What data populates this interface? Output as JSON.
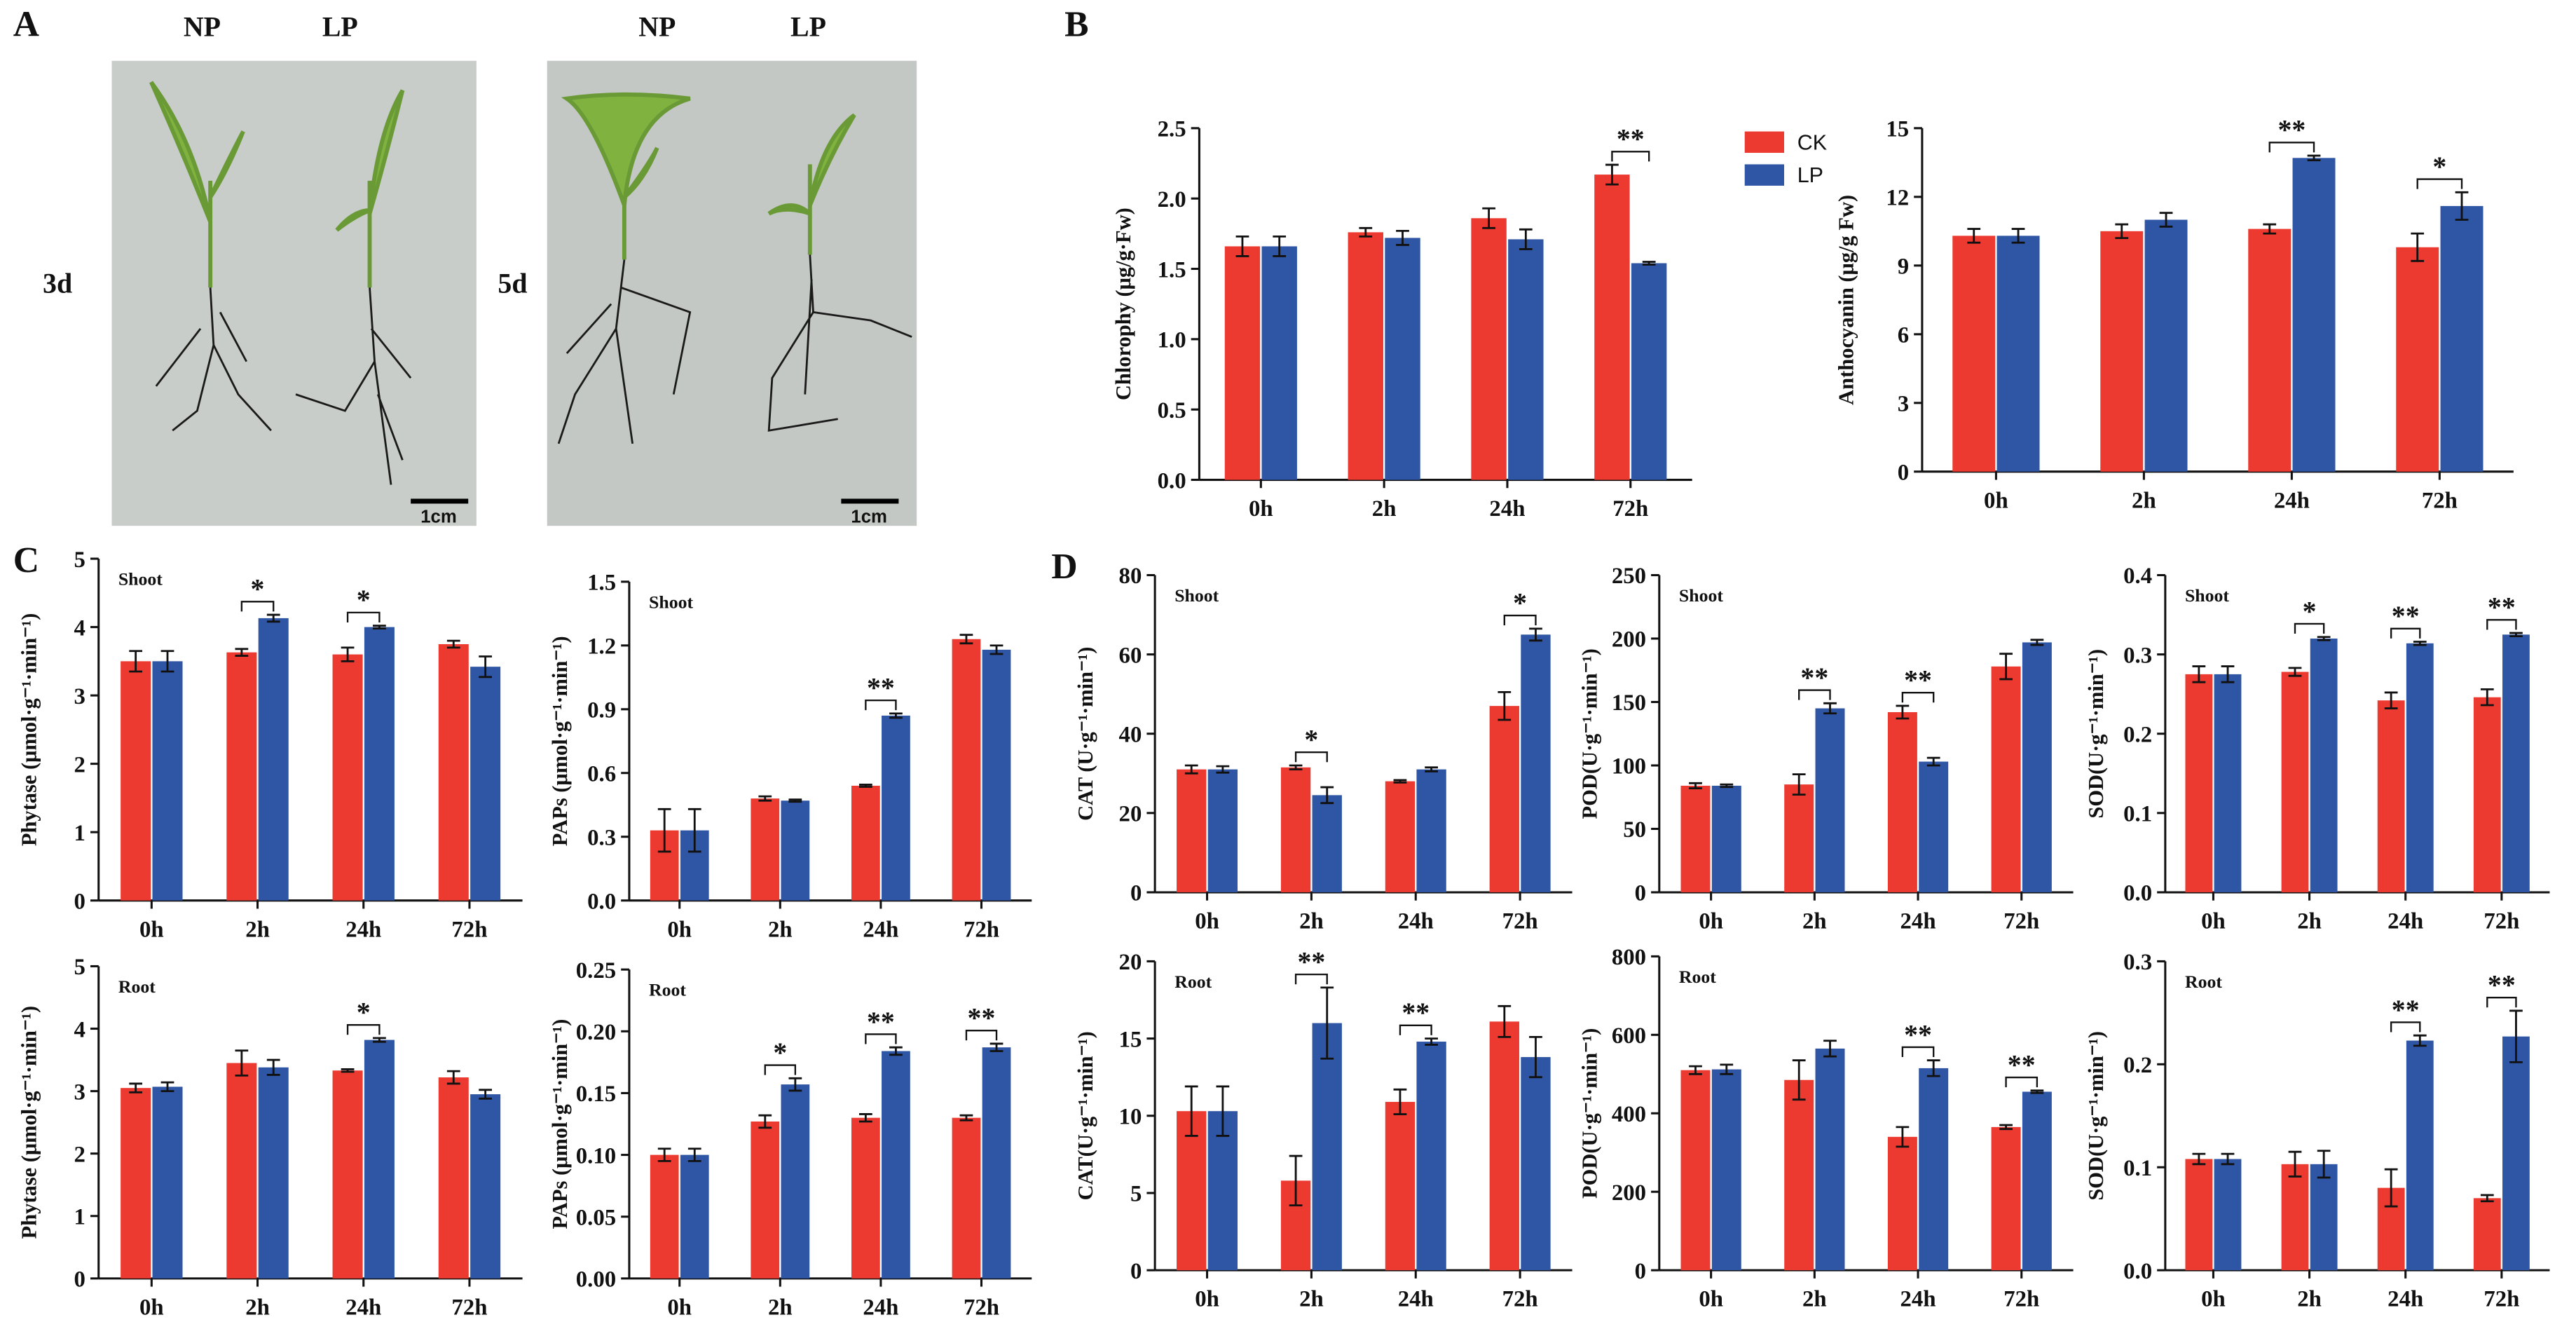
{
  "panel_labels": [
    "A",
    "B",
    "C",
    "D"
  ],
  "photo": {
    "column_labels": [
      "NP",
      "LP",
      "NP",
      "LP"
    ],
    "row_labels": [
      "3d",
      "5d"
    ],
    "scale_bars": [
      "1cm",
      "1cm"
    ]
  },
  "chart_data": [
    {
      "type": "bar",
      "ylabel": "Chlorophy (μg/g·Fw)",
      "legend": "right",
      "categories": [
        "0h",
        "2h",
        "24h",
        "72h"
      ],
      "series": [
        {
          "name": "CK",
          "color": "#ec3a30",
          "values": [
            1.66,
            1.76,
            1.86,
            2.17
          ],
          "errors": [
            0.07,
            0.03,
            0.07,
            0.07
          ]
        },
        {
          "name": "LP",
          "color": "#2f55a5",
          "values": [
            1.66,
            1.72,
            1.71,
            1.54
          ],
          "errors": [
            0.07,
            0.05,
            0.07,
            0.01
          ]
        }
      ],
      "significance": [
        null,
        null,
        null,
        "**"
      ],
      "ylim": [
        0,
        2.5
      ],
      "yticks": [
        {
          "value": 0,
          "label": "0.0"
        },
        0.5,
        {
          "value": 1,
          "label": "1.0"
        },
        1.5,
        {
          "value": 2,
          "label": "2.0"
        },
        2.5
      ]
    },
    {
      "type": "bar",
      "ylabel": "Anthocyanin  (μg/g Fw)",
      "categories": [
        "0h",
        "2h",
        "24h",
        "72h"
      ],
      "series": [
        {
          "name": "CK",
          "color": "#ec3a30",
          "values": [
            10.3,
            10.5,
            10.6,
            9.8
          ],
          "errors": [
            0.3,
            0.3,
            0.2,
            0.6
          ]
        },
        {
          "name": "LP",
          "color": "#2f55a5",
          "values": [
            10.3,
            11.0,
            13.7,
            11.6
          ],
          "errors": [
            0.3,
            0.3,
            0.1,
            0.6
          ]
        }
      ],
      "significance": [
        null,
        null,
        "**",
        "*"
      ],
      "ylim": [
        0,
        15
      ],
      "yticks": [
        0,
        3,
        6,
        9,
        12,
        15
      ]
    },
    {
      "type": "bar",
      "ylabel": "Phytase (μmol·g⁻¹·min⁻¹)",
      "inset_label": "Shoot",
      "categories": [
        "0h",
        "2h",
        "24h",
        "72h"
      ],
      "series": [
        {
          "name": "CK",
          "color": "#ec3a30",
          "values": [
            3.5,
            3.63,
            3.6,
            3.75
          ],
          "errors": [
            0.15,
            0.05,
            0.1,
            0.05
          ]
        },
        {
          "name": "LP",
          "color": "#2f55a5",
          "values": [
            3.5,
            4.13,
            4.0,
            3.42
          ],
          "errors": [
            0.15,
            0.05,
            0.02,
            0.15
          ]
        }
      ],
      "significance": [
        null,
        "*",
        "*",
        null
      ],
      "ylim": [
        0,
        5
      ],
      "yticks": [
        0,
        1,
        2,
        3,
        4,
        5
      ]
    },
    {
      "type": "bar",
      "ylabel": "PAPs (μmol·g⁻¹·min⁻¹)",
      "inset_label": "Shoot",
      "categories": [
        "0h",
        "2h",
        "24h",
        "72h"
      ],
      "series": [
        {
          "name": "CK",
          "color": "#ec3a30",
          "values": [
            0.33,
            0.48,
            0.54,
            1.23
          ],
          "errors": [
            0.1,
            0.01,
            0.005,
            0.02
          ]
        },
        {
          "name": "LP",
          "color": "#2f55a5",
          "values": [
            0.33,
            0.47,
            0.87,
            1.18
          ],
          "errors": [
            0.1,
            0.005,
            0.01,
            0.02
          ]
        }
      ],
      "significance": [
        null,
        null,
        "**",
        null
      ],
      "ylim": [
        0,
        1.5
      ],
      "yticks": [
        {
          "value": 0,
          "label": "0.0"
        },
        0.3,
        0.6,
        0.9,
        1.2,
        1.5
      ]
    },
    {
      "type": "bar",
      "ylabel": "Phytase (μmol·g⁻¹·min⁻¹)",
      "inset_label": "Root",
      "categories": [
        "0h",
        "2h",
        "24h",
        "72h"
      ],
      "series": [
        {
          "name": "CK",
          "color": "#ec3a30",
          "values": [
            3.05,
            3.45,
            3.33,
            3.22
          ],
          "errors": [
            0.07,
            0.2,
            0.02,
            0.1
          ]
        },
        {
          "name": "LP",
          "color": "#2f55a5",
          "values": [
            3.07,
            3.38,
            3.82,
            2.95
          ],
          "errors": [
            0.07,
            0.12,
            0.03,
            0.07
          ]
        }
      ],
      "significance": [
        null,
        null,
        "*",
        null
      ],
      "ylim": [
        0,
        5
      ],
      "yticks": [
        0,
        1,
        2,
        3,
        4,
        5
      ]
    },
    {
      "type": "bar",
      "ylabel": "PAPs (μmol·g⁻¹·min⁻¹)",
      "inset_label": "Root",
      "categories": [
        "0h",
        "2h",
        "24h",
        "72h"
      ],
      "series": [
        {
          "name": "CK",
          "color": "#ec3a30",
          "values": [
            0.1,
            0.127,
            0.13,
            0.13
          ],
          "errors": [
            0.005,
            0.005,
            0.003,
            0.002
          ]
        },
        {
          "name": "LP",
          "color": "#2f55a5",
          "values": [
            0.1,
            0.157,
            0.184,
            0.187
          ],
          "errors": [
            0.005,
            0.005,
            0.003,
            0.003
          ]
        }
      ],
      "significance": [
        null,
        "*",
        "**",
        "**"
      ],
      "ylim": [
        0,
        0.25
      ],
      "yticks": [
        {
          "value": 0,
          "label": "0.00"
        },
        {
          "value": 0.05,
          "label": "0.05"
        },
        {
          "value": 0.1,
          "label": "0.10"
        },
        {
          "value": 0.15,
          "label": "0.15"
        },
        {
          "value": 0.2,
          "label": "0.20"
        },
        {
          "value": 0.25,
          "label": "0.25"
        }
      ]
    },
    {
      "type": "bar",
      "ylabel": "CAT (U·g⁻¹·min⁻¹)",
      "inset_label": "Shoot",
      "categories": [
        "0h",
        "2h",
        "24h",
        "72h"
      ],
      "series": [
        {
          "name": "CK",
          "color": "#ec3a30",
          "values": [
            31,
            31.5,
            28,
            47
          ],
          "errors": [
            1,
            0.5,
            0.3,
            3.5
          ]
        },
        {
          "name": "LP",
          "color": "#2f55a5",
          "values": [
            31,
            24.5,
            31,
            65
          ],
          "errors": [
            0.8,
            2,
            0.5,
            1.5
          ]
        }
      ],
      "significance": [
        null,
        "*",
        null,
        "*"
      ],
      "ylim": [
        0,
        80
      ],
      "yticks": [
        0,
        20,
        40,
        60,
        80
      ]
    },
    {
      "type": "bar",
      "ylabel": "POD(U·g⁻¹·min⁻¹)",
      "inset_label": "Shoot",
      "categories": [
        "0h",
        "2h",
        "24h",
        "72h"
      ],
      "series": [
        {
          "name": "CK",
          "color": "#ec3a30",
          "values": [
            84,
            85,
            142,
            178
          ],
          "errors": [
            2,
            8,
            5,
            10
          ]
        },
        {
          "name": "LP",
          "color": "#2f55a5",
          "values": [
            84,
            145,
            103,
            197
          ],
          "errors": [
            1,
            4,
            3,
            2
          ]
        }
      ],
      "significance": [
        null,
        "**",
        "**",
        null
      ],
      "ylim": [
        0,
        250
      ],
      "yticks": [
        0,
        50,
        100,
        150,
        200,
        250
      ]
    },
    {
      "type": "bar",
      "ylabel": "SOD(U·g⁻¹·min⁻¹)",
      "inset_label": "Shoot",
      "categories": [
        "0h",
        "2h",
        "24h",
        "72h"
      ],
      "series": [
        {
          "name": "CK",
          "color": "#ec3a30",
          "values": [
            0.275,
            0.278,
            0.242,
            0.246
          ],
          "errors": [
            0.01,
            0.005,
            0.01,
            0.01
          ]
        },
        {
          "name": "LP",
          "color": "#2f55a5",
          "values": [
            0.275,
            0.32,
            0.314,
            0.325
          ],
          "errors": [
            0.01,
            0.002,
            0.002,
            0.002
          ]
        }
      ],
      "significance": [
        null,
        "*",
        "**",
        "**"
      ],
      "ylim": [
        0,
        0.4
      ],
      "yticks": [
        {
          "value": 0,
          "label": "0.0"
        },
        0.1,
        0.2,
        0.3,
        0.4
      ]
    },
    {
      "type": "bar",
      "ylabel": "CAT(U·g⁻¹·min⁻¹)",
      "inset_label": "Root",
      "categories": [
        "0h",
        "2h",
        "24h",
        "72h"
      ],
      "series": [
        {
          "name": "CK",
          "color": "#ec3a30",
          "values": [
            10.3,
            5.8,
            10.9,
            16.1
          ],
          "errors": [
            1.6,
            1.6,
            0.8,
            1
          ]
        },
        {
          "name": "LP",
          "color": "#2f55a5",
          "values": [
            10.3,
            16,
            14.8,
            13.8
          ],
          "errors": [
            1.6,
            2.3,
            0.2,
            1.3
          ]
        }
      ],
      "significance": [
        null,
        "**",
        "**",
        null
      ],
      "ylim": [
        0,
        20
      ],
      "yticks": [
        0,
        5,
        10,
        15,
        20
      ]
    },
    {
      "type": "bar",
      "ylabel": "POD(U·g⁻¹·min⁻¹)",
      "inset_label": "Root",
      "categories": [
        "0h",
        "2h",
        "24h",
        "72h"
      ],
      "series": [
        {
          "name": "CK",
          "color": "#ec3a30",
          "values": [
            510,
            485,
            340,
            365
          ],
          "errors": [
            10,
            50,
            25,
            5
          ]
        },
        {
          "name": "LP",
          "color": "#2f55a5",
          "values": [
            512,
            565,
            515,
            455
          ],
          "errors": [
            12,
            20,
            20,
            3
          ]
        }
      ],
      "significance": [
        null,
        null,
        "**",
        "**"
      ],
      "ylim": [
        0,
        800
      ],
      "yticks": [
        0,
        200,
        400,
        600,
        800
      ]
    },
    {
      "type": "bar",
      "ylabel": "SOD(U·g⁻¹·min⁻¹)",
      "inset_label": "Root",
      "categories": [
        "0h",
        "2h",
        "24h",
        "72h"
      ],
      "series": [
        {
          "name": "CK",
          "color": "#ec3a30",
          "values": [
            0.108,
            0.103,
            0.08,
            0.07
          ],
          "errors": [
            0.005,
            0.012,
            0.018,
            0.003
          ]
        },
        {
          "name": "LP",
          "color": "#2f55a5",
          "values": [
            0.108,
            0.103,
            0.223,
            0.227
          ],
          "errors": [
            0.005,
            0.013,
            0.005,
            0.025
          ]
        }
      ],
      "significance": [
        null,
        null,
        "**",
        "**"
      ],
      "ylim": [
        0,
        0.3
      ],
      "yticks": [
        {
          "value": 0,
          "label": "0.0"
        },
        0.1,
        0.2,
        0.3
      ]
    }
  ]
}
